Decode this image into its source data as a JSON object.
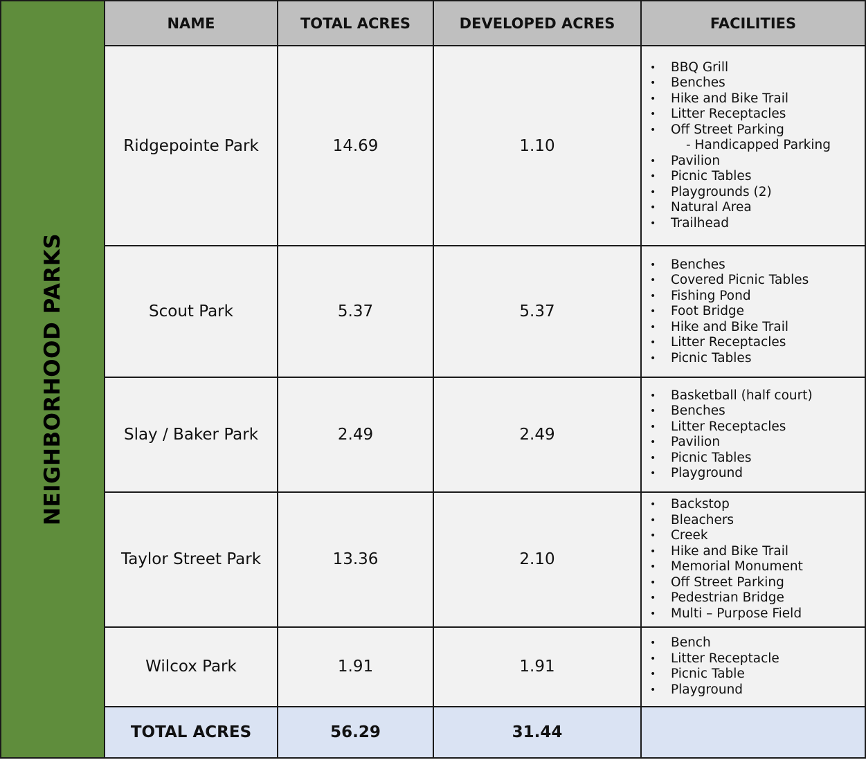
{
  "section_label": "NEIGHBORHOOD PARKS",
  "headers": [
    "NAME",
    "TOTAL ACRES",
    "DEVELOPED ACRES",
    "FACILITIES"
  ],
  "parks": [
    {
      "name": "Ridgepointe Park",
      "total_acres": "14.69",
      "developed_acres": "1.10",
      "facilities": [
        "BBQ Grill",
        "Benches",
        "Hike and Bike Trail",
        "Litter Receptacles",
        "Off Street Parking",
        "- Handicapped Parking",
        "Pavilion",
        "Picnic Tables",
        "Playgrounds (2)",
        "Natural Area",
        "Trailhead"
      ]
    },
    {
      "name": "Scout Park",
      "total_acres": "5.37",
      "developed_acres": "5.37",
      "facilities": [
        "Benches",
        "Covered Picnic Tables",
        "Fishing Pond",
        "Foot Bridge",
        "Hike and Bike Trail",
        "Litter Receptacles",
        "Picnic Tables"
      ]
    },
    {
      "name": "Slay / Baker Park",
      "total_acres": "2.49",
      "developed_acres": "2.49",
      "facilities": [
        "Basketball (half court)",
        "Benches",
        "Litter Receptacles",
        "Pavilion",
        "Picnic Tables",
        "Playground"
      ]
    },
    {
      "name": "Taylor Street Park",
      "total_acres": "13.36",
      "developed_acres": "2.10",
      "facilities": [
        "Backstop",
        "Bleachers",
        "Creek",
        "Hike and Bike Trail",
        "Memorial Monument",
        "Off Street Parking",
        "Pedestrian Bridge",
        "Multi – Purpose Field"
      ]
    },
    {
      "name": "Wilcox Park",
      "total_acres": "1.91",
      "developed_acres": "1.91",
      "facilities": [
        "Bench",
        "Litter Receptacle",
        "Picnic Table",
        "Playground"
      ]
    }
  ],
  "totals": {
    "label": "TOTAL ACRES",
    "total_acres": "56.29",
    "developed_acres": "31.44"
  }
}
